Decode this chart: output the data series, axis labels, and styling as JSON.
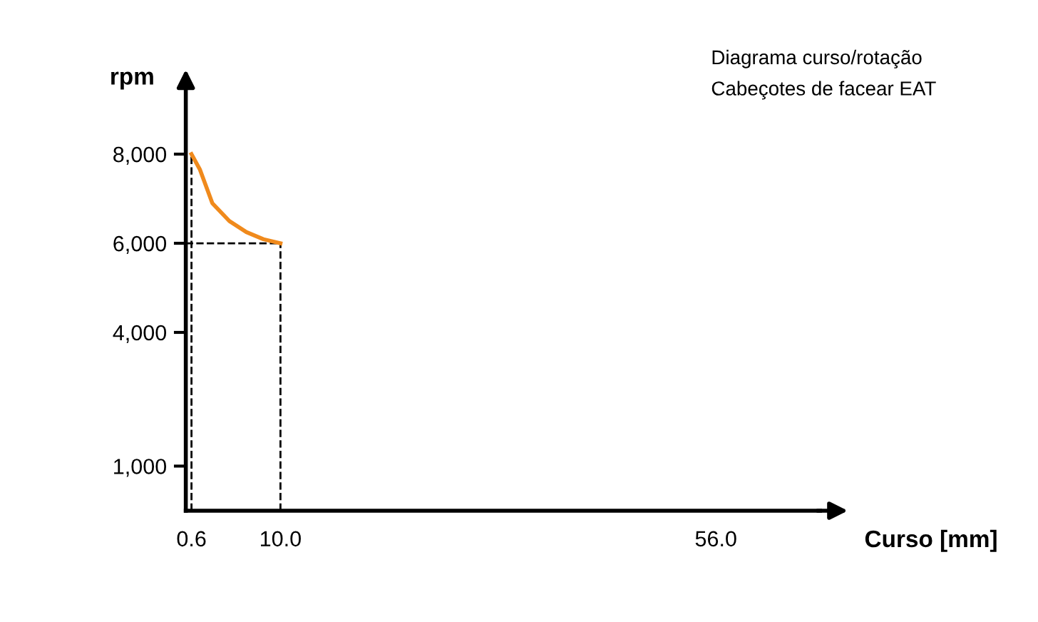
{
  "chart_data": {
    "type": "line",
    "title": "Diagrama curso/rotação",
    "subtitle": "Cabeçotes de facear EAT",
    "xlabel": "Curso [mm]",
    "ylabel": "rpm",
    "series": [
      {
        "color": "#f08a1c",
        "x": [
          0.6,
          1.5,
          2.8,
          4.6,
          6.4,
          8.2,
          10.0
        ],
        "values": [
          8000,
          7650,
          6900,
          6500,
          6250,
          6090,
          6000
        ]
      }
    ],
    "xlim": [
      0,
      67
    ],
    "ylim": [
      0,
      9700
    ],
    "xticks": [
      {
        "value": 0.6,
        "label": "0.6"
      },
      {
        "value": 10.0,
        "label": "10.0"
      },
      {
        "value": 56.0,
        "label": "56.0"
      }
    ],
    "yticks": [
      {
        "value": 1000,
        "label": "1,000"
      },
      {
        "value": 4000,
        "label": "4,000"
      },
      {
        "value": 6000,
        "label": "6,000"
      },
      {
        "value": 8000,
        "label": "8,000"
      }
    ],
    "ref_lines": [
      {
        "axis": "x",
        "value": 0.6,
        "line_style": "dashed",
        "color": "#000000"
      },
      {
        "axis": "x",
        "value": 10.0,
        "line_style": "dashed",
        "color": "#000000"
      },
      {
        "axis": "y",
        "value": 6000,
        "line_style": "dashed",
        "color": "#000000"
      }
    ],
    "grid": false,
    "legend": false,
    "marker": "none",
    "line_style": "solid"
  }
}
